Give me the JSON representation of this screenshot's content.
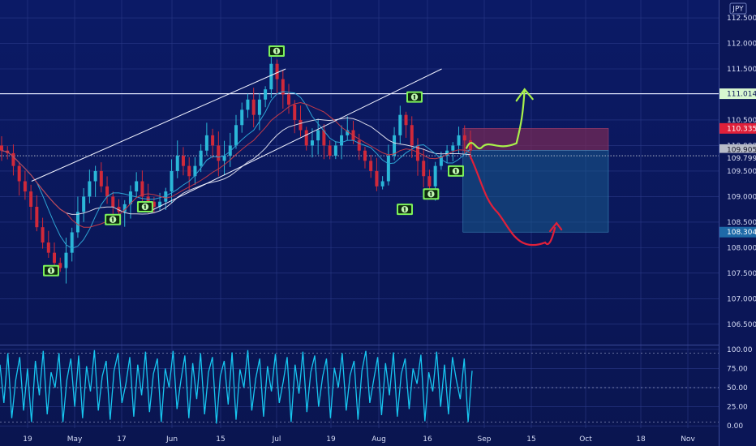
{
  "currency_label": "JPY",
  "colors": {
    "background_top": "#0b1a66",
    "background_bottom": "#0a1550",
    "grid": "#2a3a88",
    "candle_up": "#2bb7d8",
    "candle_down": "#d0293a",
    "stoch": "#17c6f0",
    "marker": "#7cf05a",
    "arrow_up": "#a8f04a",
    "arrow_down": "#e0203a",
    "stop_zone": "#7a2a55",
    "target_zone": "#1a5a8a",
    "label_green": "#d8f7d0",
    "label_red": "#e0203a",
    "label_grey": "#b8bcc8",
    "label_blue": "#1e6aa8"
  },
  "chart_data": [
    {
      "type": "candlestick",
      "title": "",
      "x_ticks": [
        "19",
        "May",
        "17",
        "Jun",
        "15",
        "Jul",
        "19",
        "Aug",
        "16",
        "Sep",
        "15",
        "Oct",
        "18",
        "Nov"
      ],
      "y_ticks": [
        "112.500",
        "112.000",
        "111.500",
        "111.000",
        "110.500",
        "110.000",
        "109.500",
        "109.000",
        "108.500",
        "108.000",
        "107.500",
        "107.000",
        "106.500"
      ],
      "ylim": [
        106.1,
        112.85
      ],
      "horizontal_lines": [
        111.014,
        109.799
      ],
      "price_labels": [
        {
          "value": "111.014",
          "price": 111.014,
          "style": "green"
        },
        {
          "value": "110.335",
          "price": 110.335,
          "style": "red"
        },
        {
          "value": "109.905",
          "price": 109.905,
          "style": "grey"
        },
        {
          "value": "109.799",
          "price": 109.799,
          "style": "white"
        },
        {
          "value": "108.304",
          "price": 108.304,
          "style": "blue"
        }
      ],
      "close_series": [
        109.9,
        109.85,
        109.6,
        109.3,
        109.1,
        108.8,
        108.4,
        108.1,
        107.9,
        107.7,
        107.6,
        107.9,
        108.3,
        108.7,
        109.0,
        109.3,
        109.5,
        109.2,
        109.0,
        108.8,
        108.7,
        108.85,
        109.1,
        109.3,
        109.0,
        108.9,
        108.8,
        108.9,
        109.1,
        109.5,
        109.8,
        109.6,
        109.4,
        109.6,
        109.9,
        110.2,
        110.0,
        109.7,
        109.8,
        110.0,
        110.4,
        110.7,
        110.9,
        110.6,
        110.9,
        111.1,
        111.6,
        111.3,
        111.0,
        110.8,
        110.5,
        110.3,
        110.0,
        110.1,
        110.3,
        110.0,
        109.8,
        110.0,
        110.2,
        110.3,
        110.1,
        109.9,
        109.7,
        109.5,
        109.2,
        109.3,
        109.8,
        110.2,
        110.6,
        110.4,
        110.0,
        109.7,
        109.4,
        109.2,
        109.6,
        109.8,
        109.9,
        110.0,
        110.2,
        110.1,
        109.9
      ],
      "moving_averages": [
        {
          "color": "#d8d8e8",
          "period": 20
        },
        {
          "color": "#2ea4d4",
          "period": 7
        },
        {
          "color": "#c43a48",
          "period": 12
        }
      ],
      "channel_lines": [
        {
          "from": {
            "date": "Apr 20",
            "price": 109.3
          },
          "to": {
            "date": "Jul 4",
            "price": 111.5
          }
        },
        {
          "from": {
            "date": "May 25",
            "price": 108.7
          },
          "to": {
            "date": "Aug 20",
            "price": 111.5
          }
        }
      ],
      "stop_zone": {
        "from_date": "Aug 26",
        "to_date": "Oct 8",
        "top": 110.335,
        "bottom": 109.905
      },
      "target_zone": {
        "from_date": "Aug 26",
        "to_date": "Oct 8",
        "top": 109.905,
        "bottom": 108.304
      },
      "markers": [
        {
          "date": "Apr 25",
          "price": 107.55,
          "icon": "money-icon"
        },
        {
          "date": "May 14",
          "price": 108.55,
          "icon": "money-icon"
        },
        {
          "date": "May 24",
          "price": 108.8,
          "icon": "money-icon"
        },
        {
          "date": "Jul 1",
          "price": 111.85,
          "icon": "money-icon"
        },
        {
          "date": "Aug 9",
          "price": 108.75,
          "icon": "money-icon"
        },
        {
          "date": "Aug 12",
          "price": 110.95,
          "icon": "money-icon"
        },
        {
          "date": "Aug 17",
          "price": 109.05,
          "icon": "money-icon"
        },
        {
          "date": "Aug 24",
          "price": 109.5,
          "icon": "money-icon"
        }
      ],
      "projections": [
        {
          "direction": "up",
          "from": {
            "date": "Aug 27",
            "price": 109.95
          },
          "to": {
            "date": "Sep 13",
            "price": 111.1
          }
        },
        {
          "direction": "down",
          "from": {
            "date": "Aug 28",
            "price": 109.8
          },
          "to": {
            "date": "Sep 21",
            "price": 108.1
          }
        }
      ]
    },
    {
      "type": "line",
      "title": "",
      "y_ticks": [
        "100.00",
        "75.00",
        "50.00",
        "25.00",
        "0.00"
      ],
      "ylim": [
        -3,
        103
      ],
      "reference_lines": [
        95,
        50,
        5
      ],
      "series": [
        {
          "values": [
            80,
            30,
            95,
            10,
            60,
            90,
            20,
            75,
            5,
            85,
            40,
            98,
            15,
            70,
            50,
            95,
            5,
            60,
            88,
            25,
            92,
            10,
            78,
            45,
            99,
            20,
            65,
            85,
            8,
            72,
            95,
            30,
            55,
            90,
            12,
            80,
            40,
            97,
            18,
            68,
            88,
            5,
            75,
            50,
            98,
            22,
            60,
            92,
            10,
            82,
            35,
            95,
            15,
            70,
            90,
            3,
            65,
            85,
            28,
            96,
            8,
            74,
            50,
            99,
            20,
            62,
            88,
            12,
            78,
            45,
            94,
            30,
            58,
            90,
            5,
            80,
            42,
            97,
            18,
            70,
            92,
            25,
            64,
            88,
            10,
            76,
            50,
            95,
            20,
            66,
            85,
            8,
            72,
            98,
            30,
            60,
            90,
            14,
            82,
            40,
            96,
            12,
            68,
            88,
            22,
            75,
            55,
            93,
            6,
            70,
            45,
            97,
            25,
            80,
            15,
            90,
            60,
            35,
            88,
            5,
            72
          ]
        }
      ]
    }
  ]
}
